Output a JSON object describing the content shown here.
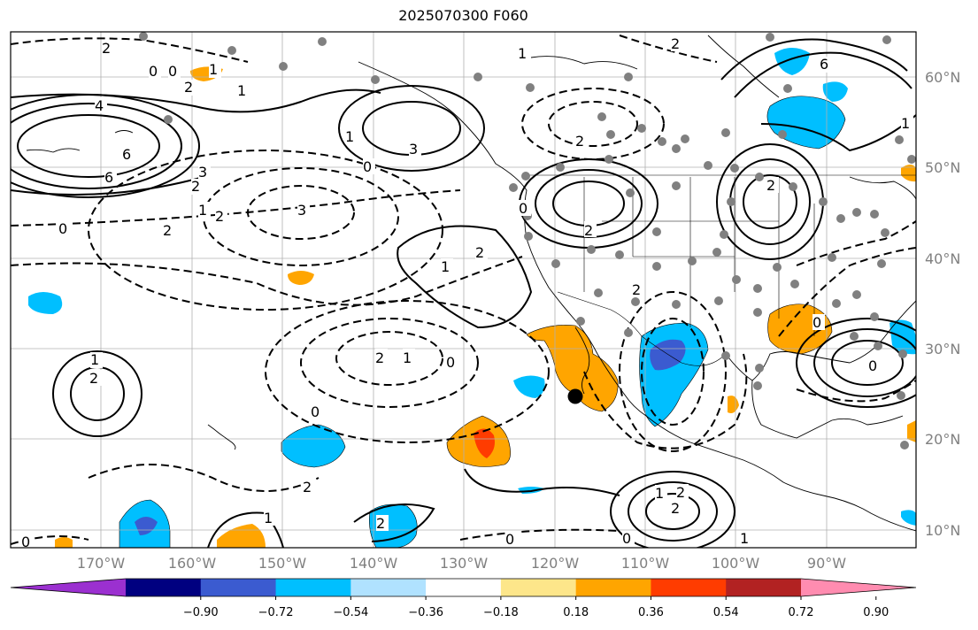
{
  "title": "2025070300 F060",
  "longitude_labels": [
    "170°W",
    "160°W",
    "150°W",
    "140°W",
    "130°W",
    "120°W",
    "110°W",
    "100°W",
    "90°W"
  ],
  "latitude_labels": [
    "60°N",
    "50°N",
    "40°N",
    "30°N",
    "20°N",
    "10°N"
  ],
  "contour_labels": [
    "2",
    "1",
    "0",
    "2",
    "1",
    "1",
    "0",
    "4",
    "6",
    "6",
    "3",
    "2",
    "3",
    "0",
    "1",
    "1",
    "2",
    "6",
    "2",
    "2",
    "3",
    "0",
    "2",
    "2",
    "1",
    "2",
    "1",
    "2",
    "2",
    "1",
    "0",
    "1",
    "2",
    "0",
    "0",
    "2",
    "2",
    "1",
    "0",
    "0",
    "0",
    "0",
    "2",
    "1",
    "2",
    "2",
    "0",
    "1"
  ],
  "colorbar": {
    "ticks": [
      "−0.90",
      "−0.72",
      "−0.54",
      "−0.36",
      "−0.18",
      "0.18",
      "0.36",
      "0.54",
      "0.72",
      "0.90"
    ],
    "colors": [
      "#9b30d0",
      "#000080",
      "#3b5bd0",
      "#00bfff",
      "#b0e2ff",
      "#ffffff",
      "#fde68a",
      "#ffa500",
      "#ff3c00",
      "#b22222",
      "#ff8cb0"
    ]
  },
  "markers": {
    "station_color": "#808080",
    "highlight_color": "#000000"
  }
}
